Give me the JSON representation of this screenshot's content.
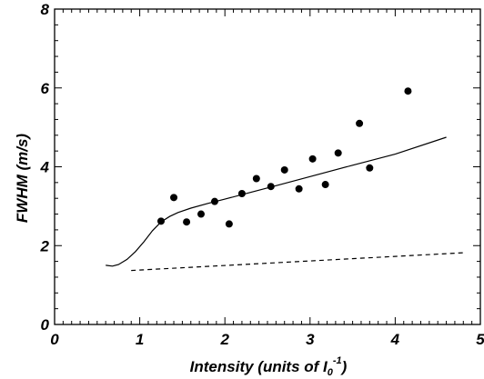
{
  "chart_data": {
    "type": "scatter",
    "xlabel": "Intensity (units of I",
    "xlabel_sub": "0",
    "xlabel_sup": "-1",
    "xlabel_end": ")",
    "ylabel": "FWHM (m/s)",
    "xlim": [
      0,
      5
    ],
    "ylim": [
      0,
      8
    ],
    "x_ticks": [
      0,
      1,
      2,
      3,
      4,
      5
    ],
    "x_tick_labels": [
      "0",
      "1",
      "2",
      "3",
      "4",
      "5"
    ],
    "y_ticks": [
      0,
      2,
      4,
      6,
      8
    ],
    "y_tick_labels": [
      "0",
      "2",
      "4",
      "6",
      "8"
    ],
    "grid": false,
    "series": [
      {
        "style": "points",
        "x": [
          1.25,
          1.4,
          1.55,
          1.72,
          1.88,
          2.05,
          2.2,
          2.37,
          2.54,
          2.7,
          2.87,
          3.03,
          3.18,
          3.33,
          3.58,
          3.7,
          4.15
        ],
        "y": [
          2.62,
          3.22,
          2.6,
          2.8,
          3.12,
          2.55,
          3.32,
          3.7,
          3.5,
          3.92,
          3.44,
          4.2,
          3.55,
          4.35,
          5.1,
          3.97,
          5.92
        ]
      },
      {
        "style": "solid",
        "x": [
          0.6,
          0.68,
          0.75,
          0.85,
          0.95,
          1.05,
          1.15,
          1.25,
          1.35,
          1.45,
          1.6,
          1.8,
          2.0,
          2.3,
          2.6,
          3.0,
          3.5,
          4.0,
          4.6
        ],
        "y": [
          1.5,
          1.48,
          1.52,
          1.65,
          1.85,
          2.1,
          2.38,
          2.6,
          2.74,
          2.84,
          2.95,
          3.07,
          3.18,
          3.35,
          3.52,
          3.75,
          4.04,
          4.32,
          4.75
        ]
      },
      {
        "style": "dashed",
        "x": [
          0.9,
          4.8
        ],
        "y": [
          1.37,
          1.82
        ]
      }
    ]
  }
}
